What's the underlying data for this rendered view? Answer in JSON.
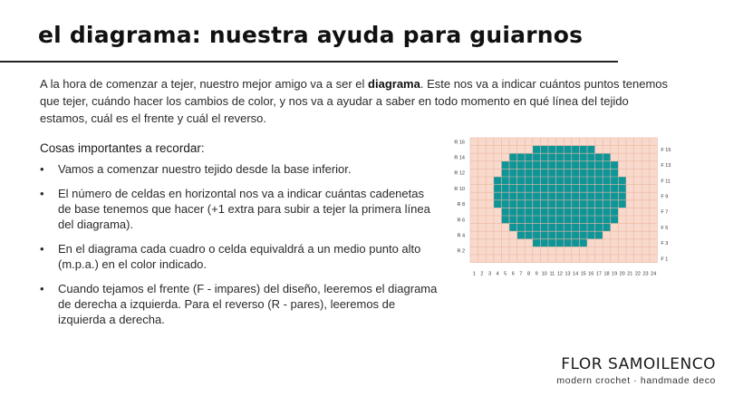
{
  "title": "el diagrama: nuestra ayuda para guiarnos",
  "intro": {
    "before": "A la hora de comenzar a tejer, nuestro mejor amigo va a ser el ",
    "bold": "diagrama",
    "after": ". Este nos va a indicar cuántos puntos tenemos que tejer, cuándo hacer los cambios de color, y nos va a ayudar a saber en todo momento en qué línea del tejido estamos, cuál es el frente y cuál el reverso."
  },
  "subheading": "Cosas importantes a recordar:",
  "bullets": [
    "Vamos a comenzar nuestro tejido desde la base inferior.",
    "El número de celdas en horizontal nos va a indicar cuántas cadenetas de base tenemos que hacer (+1 extra para subir a tejer la primera línea del diagrama).",
    "En el diagrama cada cuadro o celda equivaldrá a un medio punto alto (m.p.a.) en el color indicado.",
    "Cuando tejamos el frente (F - impares) del diseño, leeremos el diagrama de derecha a izquierda. Para el reverso (R - pares), leeremos de izquierda a derecha."
  ],
  "bullet_glyph": "•",
  "chart_data": {
    "type": "heatmap",
    "columns": 24,
    "rows": 16,
    "background_color": "#f9d9cb",
    "grid_color": "#e9b7a4",
    "fill_color": "#0e9598",
    "x_tick_labels": [
      "1",
      "2",
      "3",
      "4",
      "5",
      "6",
      "7",
      "8",
      "9",
      "10",
      "11",
      "12",
      "13",
      "14",
      "15",
      "16",
      "17",
      "18",
      "19",
      "20",
      "21",
      "22",
      "23",
      "24"
    ],
    "left_row_labels": [
      {
        "row": 2,
        "label": "R 2"
      },
      {
        "row": 4,
        "label": "R 4"
      },
      {
        "row": 6,
        "label": "R 6"
      },
      {
        "row": 8,
        "label": "R 8"
      },
      {
        "row": 10,
        "label": "R 10"
      },
      {
        "row": 12,
        "label": "R 12"
      },
      {
        "row": 14,
        "label": "R 14"
      },
      {
        "row": 16,
        "label": "R 16"
      }
    ],
    "right_row_labels": [
      {
        "row": 1,
        "label": "F 1"
      },
      {
        "row": 3,
        "label": "F 3"
      },
      {
        "row": 5,
        "label": "F 5"
      },
      {
        "row": 7,
        "label": "F 7"
      },
      {
        "row": 9,
        "label": "F 9"
      },
      {
        "row": 11,
        "label": "F 11"
      },
      {
        "row": 13,
        "label": "F 13"
      },
      {
        "row": 15,
        "label": "F 15"
      }
    ],
    "filled_ranges": [
      {
        "row": 1,
        "from": 0,
        "to": 0
      },
      {
        "row": 2,
        "from": 0,
        "to": 0
      },
      {
        "row": 3,
        "from": 9,
        "to": 15
      },
      {
        "row": 4,
        "from": 7,
        "to": 17
      },
      {
        "row": 5,
        "from": 6,
        "to": 18
      },
      {
        "row": 6,
        "from": 5,
        "to": 19
      },
      {
        "row": 7,
        "from": 5,
        "to": 19
      },
      {
        "row": 8,
        "from": 4,
        "to": 20
      },
      {
        "row": 9,
        "from": 4,
        "to": 20
      },
      {
        "row": 10,
        "from": 4,
        "to": 20
      },
      {
        "row": 11,
        "from": 4,
        "to": 20
      },
      {
        "row": 12,
        "from": 5,
        "to": 19
      },
      {
        "row": 13,
        "from": 5,
        "to": 19
      },
      {
        "row": 14,
        "from": 6,
        "to": 18
      },
      {
        "row": 15,
        "from": 9,
        "to": 16
      },
      {
        "row": 16,
        "from": 0,
        "to": 0
      }
    ]
  },
  "brand": {
    "name": "FLOR SAMOILENCO",
    "tagline": "modern crochet · handmade deco"
  }
}
